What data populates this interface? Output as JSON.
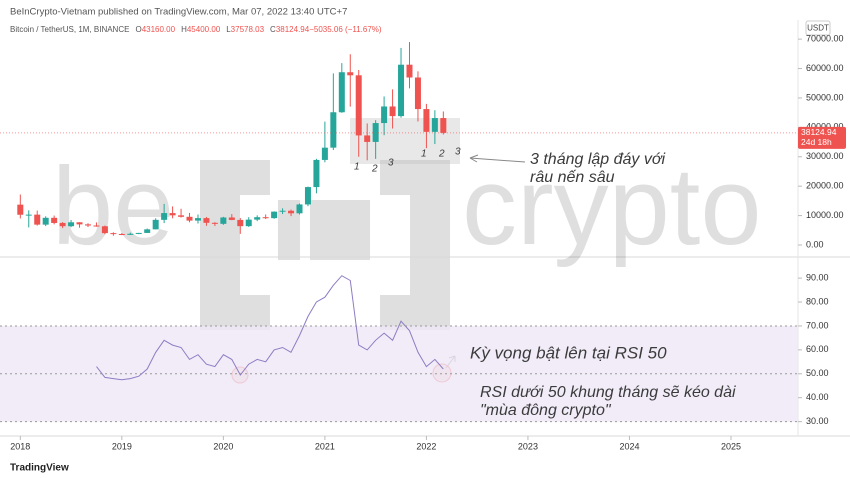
{
  "header": {
    "published": "BeInCrypto-Vietnam published on TradingView.com, Mar 07, 2022 13:40 UTC+7",
    "symbol": "Bitcoin / TetherUS, 1M, BINANCE",
    "ohlc": [
      "O",
      "43160.00",
      "H",
      "45400.00",
      "L",
      "37578.03",
      "C",
      "38124.94",
      "−5035.06 (−11.67%)"
    ],
    "currency": "USDT"
  },
  "watermark": [
    "be",
    "crypto"
  ],
  "footer": "TradingView",
  "chart_data": [
    {
      "type": "candlestick",
      "x": [
        2018,
        2018.0833,
        2018.1667,
        2018.25,
        2018.3333,
        2018.4167,
        2018.5,
        2018.5833,
        2018.6667,
        2018.75,
        2018.8333,
        2018.9167,
        2019,
        2019.0833,
        2019.1667,
        2019.25,
        2019.3333,
        2019.4167,
        2019.5,
        2019.5833,
        2019.6667,
        2019.75,
        2019.8333,
        2019.9167,
        2020,
        2020.0833,
        2020.1667,
        2020.25,
        2020.3333,
        2020.4167,
        2020.5,
        2020.5833,
        2020.6667,
        2020.75,
        2020.8333,
        2020.9167,
        2021,
        2021.0833,
        2021.1667,
        2021.25,
        2021.3333,
        2021.4167,
        2021.5,
        2021.5833,
        2021.6667,
        2021.75,
        2021.8333,
        2021.9167,
        2022,
        2022.0833,
        2022.1667
      ],
      "open": [
        13716,
        10285,
        10325,
        6923,
        9246,
        7494,
        6391,
        7725,
        7011,
        6626,
        6369,
        4041,
        3742,
        3458,
        3813,
        4103,
        5321,
        8555,
        10854,
        10084,
        9588,
        8294,
        9140,
        7541,
        7195,
        9352,
        8523,
        6410,
        8625,
        9448,
        9138,
        11335,
        11650,
        10776,
        13791,
        19695,
        28923,
        33092,
        45135,
        58740,
        57697,
        37254,
        35045,
        41461,
        47100,
        43820,
        61300,
        56951,
        46216,
        38466,
        43160
      ],
      "high": [
        17176,
        11786,
        11710,
        9759,
        10020,
        7786,
        8507,
        7750,
        7410,
        7680,
        6615,
        4313,
        4070,
        4198,
        4140,
        5600,
        9074,
        13970,
        13130,
        12325,
        10905,
        10370,
        9530,
        7750,
        9578,
        10500,
        9188,
        9468,
        10080,
        10380,
        11444,
        12468,
        12050,
        14100,
        19863,
        29300,
        41950,
        58352,
        61845,
        64854,
        59500,
        41330,
        42448,
        50500,
        52920,
        67000,
        69000,
        59053,
        47990,
        45821,
        45400
      ],
      "low": [
        9035,
        5968,
        6600,
        6430,
        7032,
        5750,
        6070,
        5880,
        6100,
        6205,
        3652,
        3156,
        3349,
        3400,
        3690,
        4067,
        5305,
        7444,
        9080,
        9320,
        7710,
        7300,
        6515,
        6435,
        6871,
        8450,
        3782,
        6150,
        8117,
        8833,
        8893,
        10518,
        9826,
        10375,
        13195,
        17572,
        28130,
        32296,
        44950,
        47044,
        30000,
        28805,
        29278,
        37332,
        39600,
        43283,
        53256,
        42000,
        32917,
        34322,
        37578.03
      ],
      "close": [
        10285,
        10326,
        6923,
        9246,
        7494,
        6391,
        7725,
        7011,
        6626,
        6371,
        4041,
        3742,
        3458,
        3813,
        4103,
        5321,
        8555,
        10854,
        10084,
        9588,
        8294,
        9140,
        7541,
        7195,
        9352,
        8523,
        6410,
        8625,
        9448,
        9138,
        11335,
        11650,
        10776,
        13791,
        19695,
        28923,
        33092,
        45135,
        58741,
        57694,
        37254,
        35045,
        41461,
        47100,
        43824,
        61299,
        56950,
        46216,
        38466,
        43160,
        38124.94
      ],
      "up_color": "#26a69a",
      "down_color": "#ef5350",
      "xlim": [
        2017.8,
        2025.66
      ],
      "ylim": [
        -3400,
        76500
      ],
      "yticks": [
        {
          "value": 0,
          "label": "0.00"
        },
        {
          "value": 10000,
          "label": "10000.00"
        },
        {
          "value": 20000,
          "label": "20000.00"
        },
        {
          "value": 30000,
          "label": "30000.00"
        },
        {
          "value": 40000,
          "label": "40000.00"
        },
        {
          "value": 50000,
          "label": "50000.00"
        },
        {
          "value": 60000,
          "label": "60000.00"
        },
        {
          "value": 70000,
          "label": "70000.00"
        }
      ],
      "last_price_label": "38124.94",
      "countdown": "24d 18h",
      "annotations": [
        "1",
        "2",
        "3",
        "1",
        "2",
        "3",
        "3 tháng lập đáy với",
        "râu nến sâu"
      ]
    },
    {
      "type": "line",
      "x": [
        2018.75,
        2018.8333,
        2018.9167,
        2019,
        2019.0833,
        2019.1667,
        2019.25,
        2019.3333,
        2019.4167,
        2019.5,
        2019.5833,
        2019.6667,
        2019.75,
        2019.8333,
        2019.9167,
        2020,
        2020.0833,
        2020.1667,
        2020.25,
        2020.3333,
        2020.4167,
        2020.5,
        2020.5833,
        2020.6667,
        2020.75,
        2020.8333,
        2020.9167,
        2021,
        2021.0833,
        2021.1667,
        2021.25,
        2021.3333,
        2021.4167,
        2021.5,
        2021.5833,
        2021.6667,
        2021.75,
        2021.8333,
        2021.9167,
        2022,
        2022.0833,
        2022.1667
      ],
      "values": [
        53,
        48.5,
        48,
        47.5,
        48,
        49,
        52,
        59,
        64,
        62,
        61,
        56,
        58,
        54,
        53,
        58,
        56,
        49.5,
        54,
        56,
        55,
        60,
        61,
        59,
        66,
        74,
        80,
        82,
        87,
        91,
        89,
        62,
        60,
        64,
        67,
        64,
        72,
        68,
        59,
        53,
        56,
        52
      ],
      "color": "#8e7cc3",
      "band_color": "#ede7f6",
      "levels": [
        70,
        50,
        30
      ],
      "xlim": [
        2017.8,
        2025.66
      ],
      "ylim": [
        24,
        98.4
      ],
      "yticks": [
        {
          "value": 30,
          "label": "30.00"
        },
        {
          "value": 40,
          "label": "40.00"
        },
        {
          "value": 50,
          "label": "50.00"
        },
        {
          "value": 60,
          "label": "60.00"
        },
        {
          "value": 70,
          "label": "70.00"
        },
        {
          "value": 80,
          "label": "80.00"
        },
        {
          "value": 90,
          "label": "90.00"
        }
      ],
      "xticks": [
        2018,
        2019,
        2020,
        2021,
        2022,
        2023,
        2024,
        2025
      ],
      "annotations": [
        "Kỳ vọng bật lên tại RSI 50",
        "RSI dưới 50 khung tháng sẽ kéo dài",
        "\"mùa đông crypto\""
      ]
    }
  ]
}
